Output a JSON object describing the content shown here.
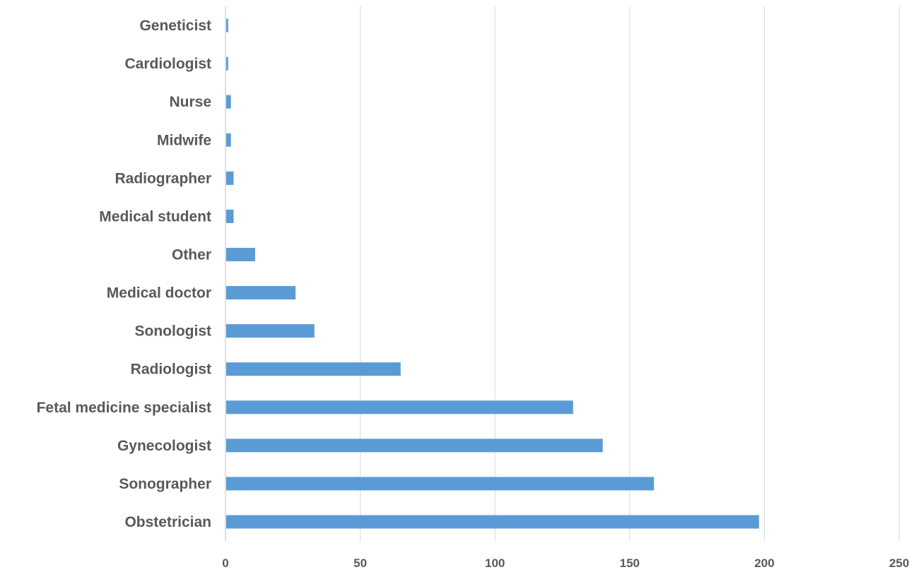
{
  "chart_data": {
    "type": "bar",
    "orientation": "horizontal",
    "categories": [
      "Obstetrician",
      "Sonographer",
      "Gynecologist",
      "Fetal medicine specialist",
      "Radiologist",
      "Sonologist",
      "Medical doctor",
      "Other",
      "Medical student",
      "Radiographer",
      "Midwife",
      "Nurse",
      "Cardiologist",
      "Geneticist"
    ],
    "values": [
      198,
      159,
      140,
      129,
      65,
      33,
      26,
      11,
      3,
      3,
      2,
      2,
      1,
      1
    ],
    "title": "",
    "xlabel": "",
    "ylabel": "",
    "xlim": [
      0,
      250
    ],
    "xticks": [
      0,
      50,
      100,
      150,
      200,
      250
    ],
    "grid": "vertical",
    "legend": "none",
    "bar_color": "#5b9bd5"
  }
}
